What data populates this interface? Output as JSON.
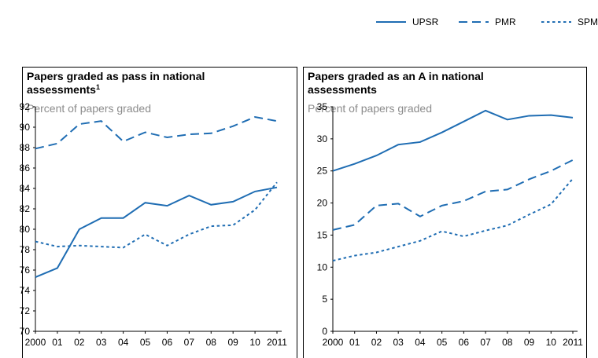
{
  "chart_data": [
    {
      "type": "line",
      "title": [
        "Papers graded as pass in national",
        "assessments"
      ],
      "title_note": "1",
      "subtitle": "Percent of papers graded",
      "categories": [
        "2000",
        "01",
        "02",
        "03",
        "04",
        "05",
        "06",
        "07",
        "08",
        "09",
        "10",
        "2011"
      ],
      "ylim": [
        70,
        92
      ],
      "yticks": [
        70,
        72,
        74,
        76,
        78,
        80,
        82,
        84,
        86,
        88,
        90,
        92
      ],
      "series": [
        {
          "name": "UPSR",
          "color": "#1f6db3",
          "style": "solid",
          "values": [
            75.3,
            76.2,
            80.0,
            81.1,
            81.1,
            82.6,
            82.3,
            83.3,
            82.4,
            82.7,
            83.7,
            84.1
          ]
        },
        {
          "name": "PMR",
          "color": "#1f6db3",
          "style": "dashed",
          "values": [
            87.9,
            88.4,
            90.3,
            90.6,
            88.6,
            89.5,
            89.0,
            89.3,
            89.4,
            90.1,
            91.0,
            90.6
          ]
        },
        {
          "name": "SPM",
          "color": "#1f6db3",
          "style": "dotted",
          "values": [
            78.8,
            78.3,
            78.4,
            78.3,
            78.2,
            79.5,
            78.4,
            79.5,
            80.3,
            80.4,
            81.9,
            84.6
          ]
        }
      ]
    },
    {
      "type": "line",
      "title": [
        "Papers graded as an A in national",
        "assessments"
      ],
      "subtitle": "Percent of papers graded",
      "categories": [
        "2000",
        "01",
        "02",
        "03",
        "04",
        "05",
        "06",
        "07",
        "08",
        "09",
        "10",
        "2011"
      ],
      "ylim": [
        0,
        35
      ],
      "yticks": [
        0,
        5,
        10,
        15,
        20,
        25,
        30,
        35
      ],
      "series": [
        {
          "color": "#1f6db3",
          "style": "solid",
          "values": [
            25.0,
            26.1,
            27.4,
            29.1,
            29.5,
            31.0,
            32.7,
            34.4,
            33.0,
            33.6,
            33.7,
            33.3
          ]
        },
        {
          "color": "#1f6db3",
          "style": "dashed",
          "values": [
            15.8,
            16.6,
            19.6,
            19.9,
            17.9,
            19.6,
            20.3,
            21.8,
            22.1,
            23.7,
            25.0,
            26.7
          ]
        },
        {
          "color": "#1f6db3",
          "style": "dotted",
          "values": [
            11.0,
            11.8,
            12.3,
            13.2,
            14.1,
            15.6,
            14.8,
            15.7,
            16.5,
            18.2,
            19.8,
            23.8
          ]
        }
      ]
    }
  ]
}
